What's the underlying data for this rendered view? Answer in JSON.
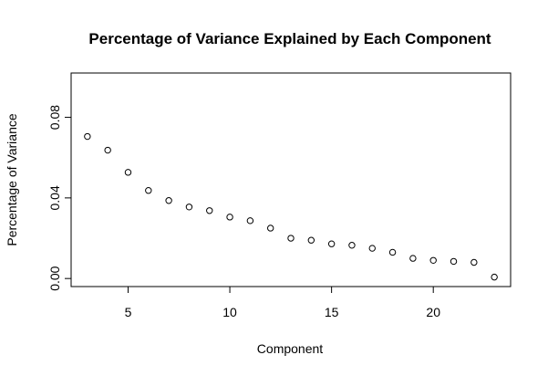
{
  "chart_data": {
    "type": "scatter",
    "title": "Percentage of Variance Explained by Each Component",
    "xlabel": "Component",
    "ylabel": "Percentage of Variance",
    "x": [
      3,
      4,
      5,
      6,
      7,
      8,
      9,
      10,
      11,
      12,
      13,
      14,
      15,
      16,
      17,
      18,
      19,
      20,
      21,
      22,
      23
    ],
    "y": [
      0.0705,
      0.0637,
      0.0527,
      0.0437,
      0.0387,
      0.0355,
      0.0337,
      0.0305,
      0.0287,
      0.025,
      0.02,
      0.019,
      0.0172,
      0.0165,
      0.015,
      0.013,
      0.01,
      0.009,
      0.0085,
      0.008,
      0.0007
    ],
    "xlim": [
      2.2,
      23.8
    ],
    "ylim": [
      -0.004,
      0.102
    ],
    "x_ticks": [
      5,
      10,
      15,
      20
    ],
    "x_tick_labels": [
      "5",
      "10",
      "15",
      "20"
    ],
    "y_ticks": [
      0.0,
      0.04,
      0.08
    ],
    "y_tick_labels": [
      "0.00",
      "0.04",
      "0.08"
    ],
    "grid": false,
    "marker": "open-circle",
    "point_color": "#000000"
  }
}
